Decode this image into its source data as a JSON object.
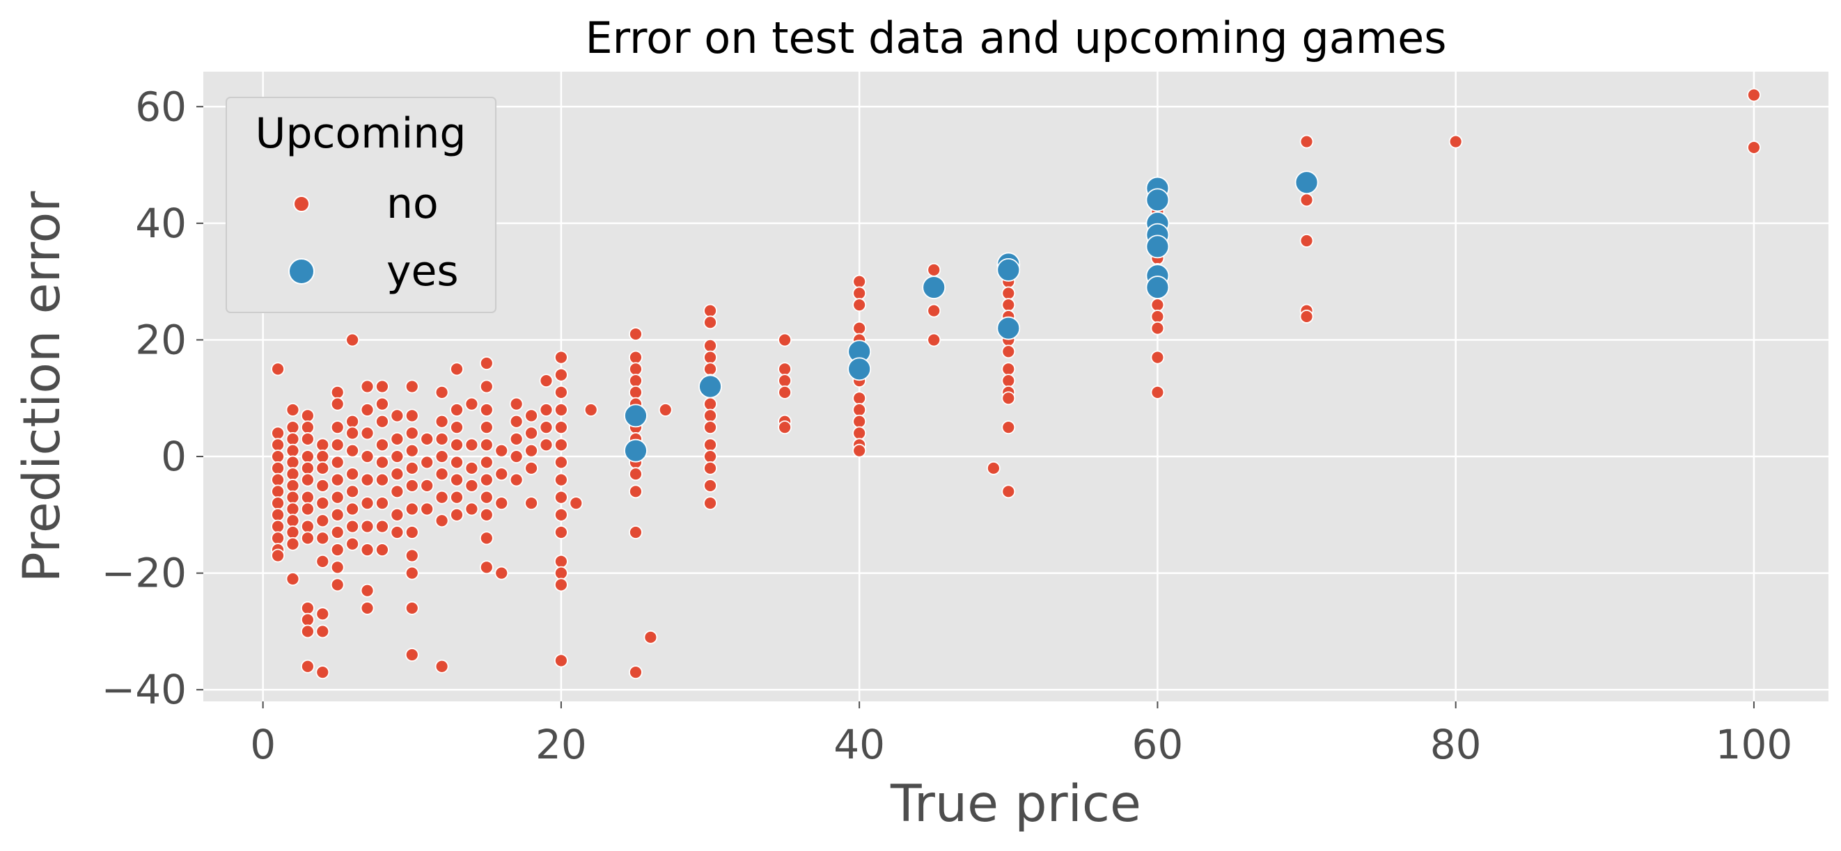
{
  "chart_data": {
    "type": "scatter",
    "title": "Error on test data and upcoming games",
    "xlabel": "True price",
    "ylabel": "Prediction error",
    "xlim": [
      -4,
      105
    ],
    "ylim": [
      -42,
      66
    ],
    "xticks": [
      0,
      20,
      40,
      60,
      80,
      100
    ],
    "xtick_labels": [
      "0",
      "20",
      "40",
      "60",
      "80",
      "100"
    ],
    "yticks": [
      -40,
      -20,
      0,
      20,
      40,
      60
    ],
    "ytick_labels": [
      "−40",
      "−20",
      "0",
      "20",
      "40",
      "60"
    ],
    "grid": true,
    "legend": {
      "title": "Upcoming",
      "placement": "top-left",
      "entries": [
        "no",
        "yes"
      ]
    },
    "colors": {
      "no": "#e24a33",
      "yes": "#348abd",
      "background": "#e5e5e5",
      "grid": "#ffffff"
    },
    "series": [
      {
        "name": "no",
        "points": [
          [
            1,
            15
          ],
          [
            1,
            4
          ],
          [
            1,
            2
          ],
          [
            1,
            0
          ],
          [
            1,
            -2
          ],
          [
            1,
            -4
          ],
          [
            1,
            -6
          ],
          [
            1,
            -8
          ],
          [
            1,
            -10
          ],
          [
            1,
            -12
          ],
          [
            1,
            -14
          ],
          [
            1,
            -16
          ],
          [
            1,
            -17
          ],
          [
            2,
            8
          ],
          [
            2,
            5
          ],
          [
            2,
            3
          ],
          [
            2,
            1
          ],
          [
            2,
            -1
          ],
          [
            2,
            -3
          ],
          [
            2,
            -5
          ],
          [
            2,
            -7
          ],
          [
            2,
            -9
          ],
          [
            2,
            -11
          ],
          [
            2,
            -13
          ],
          [
            2,
            -15
          ],
          [
            2,
            -21
          ],
          [
            3,
            7
          ],
          [
            3,
            5
          ],
          [
            3,
            3
          ],
          [
            3,
            0
          ],
          [
            3,
            -2
          ],
          [
            3,
            -4
          ],
          [
            3,
            -7
          ],
          [
            3,
            -9
          ],
          [
            3,
            -12
          ],
          [
            3,
            -14
          ],
          [
            3,
            -26
          ],
          [
            3,
            -28
          ],
          [
            3,
            -30
          ],
          [
            3,
            -36
          ],
          [
            4,
            2
          ],
          [
            4,
            0
          ],
          [
            4,
            -2
          ],
          [
            4,
            -5
          ],
          [
            4,
            -8
          ],
          [
            4,
            -11
          ],
          [
            4,
            -14
          ],
          [
            4,
            -18
          ],
          [
            4,
            -27
          ],
          [
            4,
            -30
          ],
          [
            4,
            -37
          ],
          [
            5,
            11
          ],
          [
            5,
            9
          ],
          [
            5,
            5
          ],
          [
            5,
            2
          ],
          [
            5,
            -1
          ],
          [
            5,
            -4
          ],
          [
            5,
            -7
          ],
          [
            5,
            -10
          ],
          [
            5,
            -13
          ],
          [
            5,
            -16
          ],
          [
            5,
            -19
          ],
          [
            5,
            -22
          ],
          [
            6,
            20
          ],
          [
            6,
            6
          ],
          [
            6,
            4
          ],
          [
            6,
            1
          ],
          [
            6,
            -3
          ],
          [
            6,
            -6
          ],
          [
            6,
            -9
          ],
          [
            6,
            -12
          ],
          [
            6,
            -15
          ],
          [
            7,
            12
          ],
          [
            7,
            8
          ],
          [
            7,
            4
          ],
          [
            7,
            0
          ],
          [
            7,
            -4
          ],
          [
            7,
            -8
          ],
          [
            7,
            -12
          ],
          [
            7,
            -16
          ],
          [
            7,
            -23
          ],
          [
            7,
            -26
          ],
          [
            8,
            12
          ],
          [
            8,
            9
          ],
          [
            8,
            6
          ],
          [
            8,
            2
          ],
          [
            8,
            -1
          ],
          [
            8,
            -4
          ],
          [
            8,
            -8
          ],
          [
            8,
            -12
          ],
          [
            8,
            -16
          ],
          [
            9,
            7
          ],
          [
            9,
            3
          ],
          [
            9,
            0
          ],
          [
            9,
            -3
          ],
          [
            9,
            -6
          ],
          [
            9,
            -10
          ],
          [
            9,
            -13
          ],
          [
            10,
            12
          ],
          [
            10,
            7
          ],
          [
            10,
            4
          ],
          [
            10,
            1
          ],
          [
            10,
            -2
          ],
          [
            10,
            -5
          ],
          [
            10,
            -9
          ],
          [
            10,
            -13
          ],
          [
            10,
            -17
          ],
          [
            10,
            -20
          ],
          [
            10,
            -26
          ],
          [
            10,
            -34
          ],
          [
            11,
            3
          ],
          [
            11,
            -1
          ],
          [
            11,
            -5
          ],
          [
            11,
            -9
          ],
          [
            12,
            11
          ],
          [
            12,
            6
          ],
          [
            12,
            3
          ],
          [
            12,
            0
          ],
          [
            12,
            -3
          ],
          [
            12,
            -7
          ],
          [
            12,
            -11
          ],
          [
            12,
            -36
          ],
          [
            13,
            15
          ],
          [
            13,
            8
          ],
          [
            13,
            5
          ],
          [
            13,
            2
          ],
          [
            13,
            -1
          ],
          [
            13,
            -4
          ],
          [
            13,
            -7
          ],
          [
            13,
            -10
          ],
          [
            14,
            9
          ],
          [
            14,
            2
          ],
          [
            14,
            -2
          ],
          [
            14,
            -5
          ],
          [
            14,
            -9
          ],
          [
            15,
            16
          ],
          [
            15,
            12
          ],
          [
            15,
            8
          ],
          [
            15,
            5
          ],
          [
            15,
            2
          ],
          [
            15,
            -1
          ],
          [
            15,
            -4
          ],
          [
            15,
            -7
          ],
          [
            15,
            -10
          ],
          [
            15,
            -14
          ],
          [
            15,
            -19
          ],
          [
            16,
            1
          ],
          [
            16,
            -3
          ],
          [
            16,
            -8
          ],
          [
            16,
            -20
          ],
          [
            17,
            9
          ],
          [
            17,
            6
          ],
          [
            17,
            3
          ],
          [
            17,
            0
          ],
          [
            17,
            -4
          ],
          [
            18,
            7
          ],
          [
            18,
            4
          ],
          [
            18,
            1
          ],
          [
            18,
            -2
          ],
          [
            18,
            -8
          ],
          [
            19,
            13
          ],
          [
            19,
            8
          ],
          [
            19,
            5
          ],
          [
            19,
            2
          ],
          [
            20,
            17
          ],
          [
            20,
            14
          ],
          [
            20,
            11
          ],
          [
            20,
            8
          ],
          [
            20,
            5
          ],
          [
            20,
            2
          ],
          [
            20,
            -1
          ],
          [
            20,
            -4
          ],
          [
            20,
            -7
          ],
          [
            20,
            -10
          ],
          [
            20,
            -13
          ],
          [
            20,
            -18
          ],
          [
            20,
            -20
          ],
          [
            20,
            -22
          ],
          [
            20,
            -35
          ],
          [
            21,
            -8
          ],
          [
            22,
            8
          ],
          [
            25,
            21
          ],
          [
            25,
            17
          ],
          [
            25,
            15
          ],
          [
            25,
            13
          ],
          [
            25,
            11
          ],
          [
            25,
            9
          ],
          [
            25,
            5
          ],
          [
            25,
            3
          ],
          [
            25,
            -1
          ],
          [
            25,
            -3
          ],
          [
            25,
            -6
          ],
          [
            25,
            -13
          ],
          [
            25,
            -37
          ],
          [
            26,
            -31
          ],
          [
            27,
            8
          ],
          [
            30,
            25
          ],
          [
            30,
            23
          ],
          [
            30,
            19
          ],
          [
            30,
            17
          ],
          [
            30,
            15
          ],
          [
            30,
            13
          ],
          [
            30,
            9
          ],
          [
            30,
            7
          ],
          [
            30,
            5
          ],
          [
            30,
            2
          ],
          [
            30,
            0
          ],
          [
            30,
            -2
          ],
          [
            30,
            -5
          ],
          [
            30,
            -8
          ],
          [
            35,
            20
          ],
          [
            35,
            15
          ],
          [
            35,
            13
          ],
          [
            35,
            11
          ],
          [
            35,
            6
          ],
          [
            35,
            5
          ],
          [
            40,
            30
          ],
          [
            40,
            28
          ],
          [
            40,
            26
          ],
          [
            40,
            22
          ],
          [
            40,
            20
          ],
          [
            40,
            16
          ],
          [
            40,
            13
          ],
          [
            40,
            10
          ],
          [
            40,
            8
          ],
          [
            40,
            6
          ],
          [
            40,
            4
          ],
          [
            40,
            2
          ],
          [
            40,
            1
          ],
          [
            45,
            32
          ],
          [
            45,
            25
          ],
          [
            45,
            20
          ],
          [
            49,
            -2
          ],
          [
            50,
            32
          ],
          [
            50,
            30
          ],
          [
            50,
            28
          ],
          [
            50,
            26
          ],
          [
            50,
            24
          ],
          [
            50,
            20
          ],
          [
            50,
            18
          ],
          [
            50,
            15
          ],
          [
            50,
            13
          ],
          [
            50,
            11
          ],
          [
            50,
            10
          ],
          [
            50,
            5
          ],
          [
            50,
            -6
          ],
          [
            60,
            42
          ],
          [
            60,
            38
          ],
          [
            60,
            36
          ],
          [
            60,
            34
          ],
          [
            60,
            32
          ],
          [
            60,
            30
          ],
          [
            60,
            28
          ],
          [
            60,
            26
          ],
          [
            60,
            24
          ],
          [
            60,
            22
          ],
          [
            60,
            17
          ],
          [
            60,
            11
          ],
          [
            70,
            54
          ],
          [
            70,
            44
          ],
          [
            70,
            37
          ],
          [
            70,
            25
          ],
          [
            70,
            24
          ],
          [
            80,
            54
          ],
          [
            100,
            62
          ],
          [
            100,
            53
          ]
        ]
      },
      {
        "name": "yes",
        "points": [
          [
            25,
            7
          ],
          [
            25,
            1
          ],
          [
            30,
            12
          ],
          [
            40,
            18
          ],
          [
            40,
            15
          ],
          [
            45,
            29
          ],
          [
            50,
            33
          ],
          [
            50,
            32
          ],
          [
            50,
            22
          ],
          [
            60,
            46
          ],
          [
            60,
            44
          ],
          [
            60,
            40
          ],
          [
            60,
            38
          ],
          [
            60,
            36
          ],
          [
            60,
            31
          ],
          [
            60,
            29
          ],
          [
            70,
            47
          ]
        ]
      }
    ]
  }
}
